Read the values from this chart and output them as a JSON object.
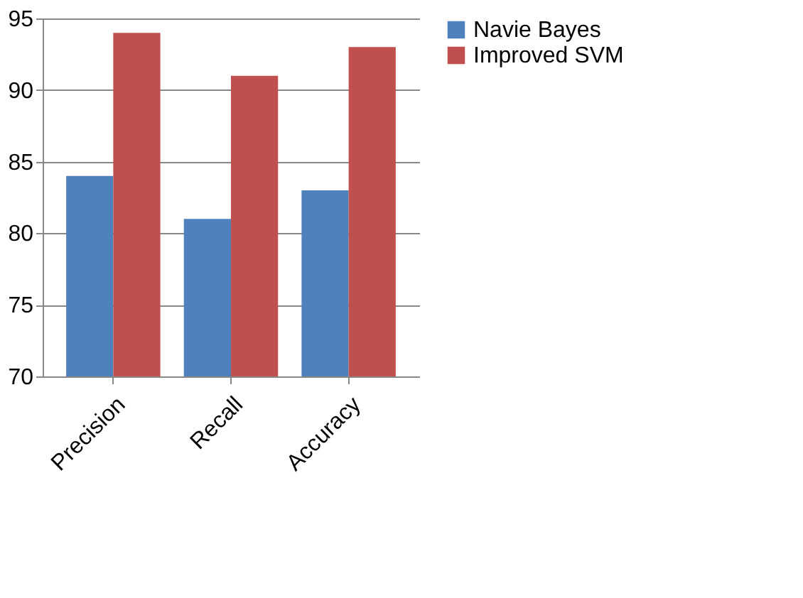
{
  "chart_data": {
    "type": "bar",
    "categories": [
      "Precision",
      "Recall",
      "Accuracy"
    ],
    "series": [
      {
        "name": "Navie Bayes",
        "color": "#4f81bd",
        "values": [
          84,
          81,
          83
        ]
      },
      {
        "name": "Improved SVM",
        "color": "#c0504d",
        "values": [
          94,
          91,
          93
        ]
      }
    ],
    "ylim": [
      70,
      95
    ],
    "yticks": [
      70,
      75,
      80,
      85,
      90,
      95
    ],
    "grid": "y",
    "legend": "right"
  }
}
